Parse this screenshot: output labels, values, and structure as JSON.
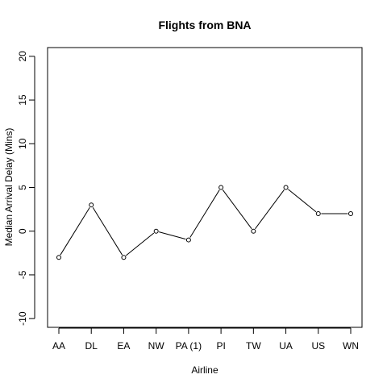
{
  "chart_data": {
    "type": "line",
    "title": "Flights from BNA",
    "xlabel": "Airline",
    "ylabel": "Median Arrival Delay (Mins)",
    "categories": [
      "AA",
      "DL",
      "EA",
      "NW",
      "PA (1)",
      "PI",
      "TW",
      "UA",
      "US",
      "WN"
    ],
    "values": [
      -3,
      3,
      -3,
      0,
      -1,
      5,
      0,
      5,
      2,
      2
    ],
    "ylim": [
      -11,
      21
    ],
    "yticks": [
      -10,
      -5,
      0,
      5,
      10,
      15,
      20
    ],
    "grid": false,
    "marker": "open-circle",
    "line_color": "#000000"
  }
}
